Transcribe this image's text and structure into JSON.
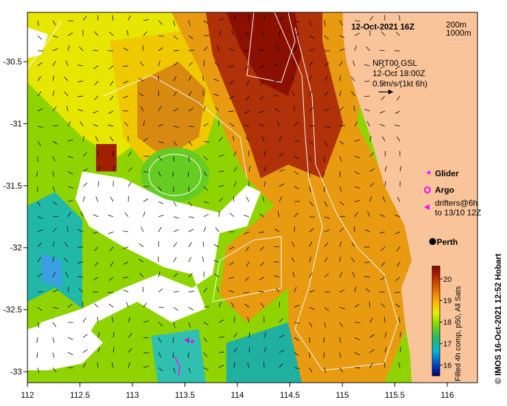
{
  "title": "12-Oct-2021 16Z",
  "depth_legend": {
    "contour_1": "200m",
    "contour_2": "1000m"
  },
  "current_info": {
    "line1": "NRT00 GSL",
    "line2": "12-Oct 18:00Z",
    "line3": "0.5m/s (1kt 6h)"
  },
  "legend": {
    "glider": "Glider",
    "argo": "Argo",
    "drifters_line1": "drifters@6h",
    "drifters_line2": "to 13/10 12Z"
  },
  "city": {
    "name": "Perth",
    "lon": 115.86,
    "lat": -31.95
  },
  "colorbar": {
    "title": "Filled 4h comp, p50, All Sats",
    "ticks": [
      "16",
      "17",
      "18",
      "19",
      "20"
    ]
  },
  "credit": "© IMOS 16-Oct-2021 12:52 Hobart",
  "axes": {
    "x_ticks": [
      "112",
      "112.5",
      "113",
      "113.5",
      "114",
      "114.5",
      "115",
      "115.5",
      "116"
    ],
    "y_ticks": [
      "-30.5",
      "-31",
      "-31.5",
      "-32",
      "-32.5",
      "-33"
    ]
  },
  "colors": {
    "land": "#f9c49a",
    "accent_magenta": "#ff00ff",
    "frame": "#000000"
  }
}
